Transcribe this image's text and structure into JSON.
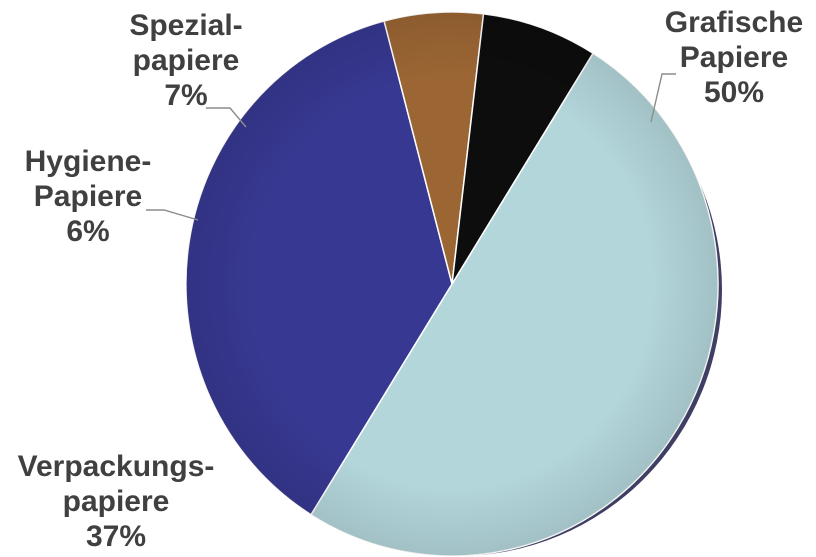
{
  "chart_data": {
    "type": "pie",
    "title": "",
    "slices": [
      {
        "label_lines": [
          "Grafische",
          "Papiere",
          "50%"
        ],
        "value": 50,
        "color": "#b3d6db"
      },
      {
        "label_lines": [
          "Verpackungs-",
          "papiere",
          "37%"
        ],
        "value": 37,
        "color": "#373891"
      },
      {
        "label_lines": [
          "Hygiene-",
          "Papiere",
          "6%"
        ],
        "value": 6,
        "color": "#9c6634"
      },
      {
        "label_lines": [
          "Spezial-",
          "papiere",
          "7%"
        ],
        "value": 7,
        "color": "#0d0d0d"
      }
    ],
    "start_angle_deg": -58,
    "direction": "clockwise",
    "legend": "none",
    "label_color": "#404040"
  }
}
